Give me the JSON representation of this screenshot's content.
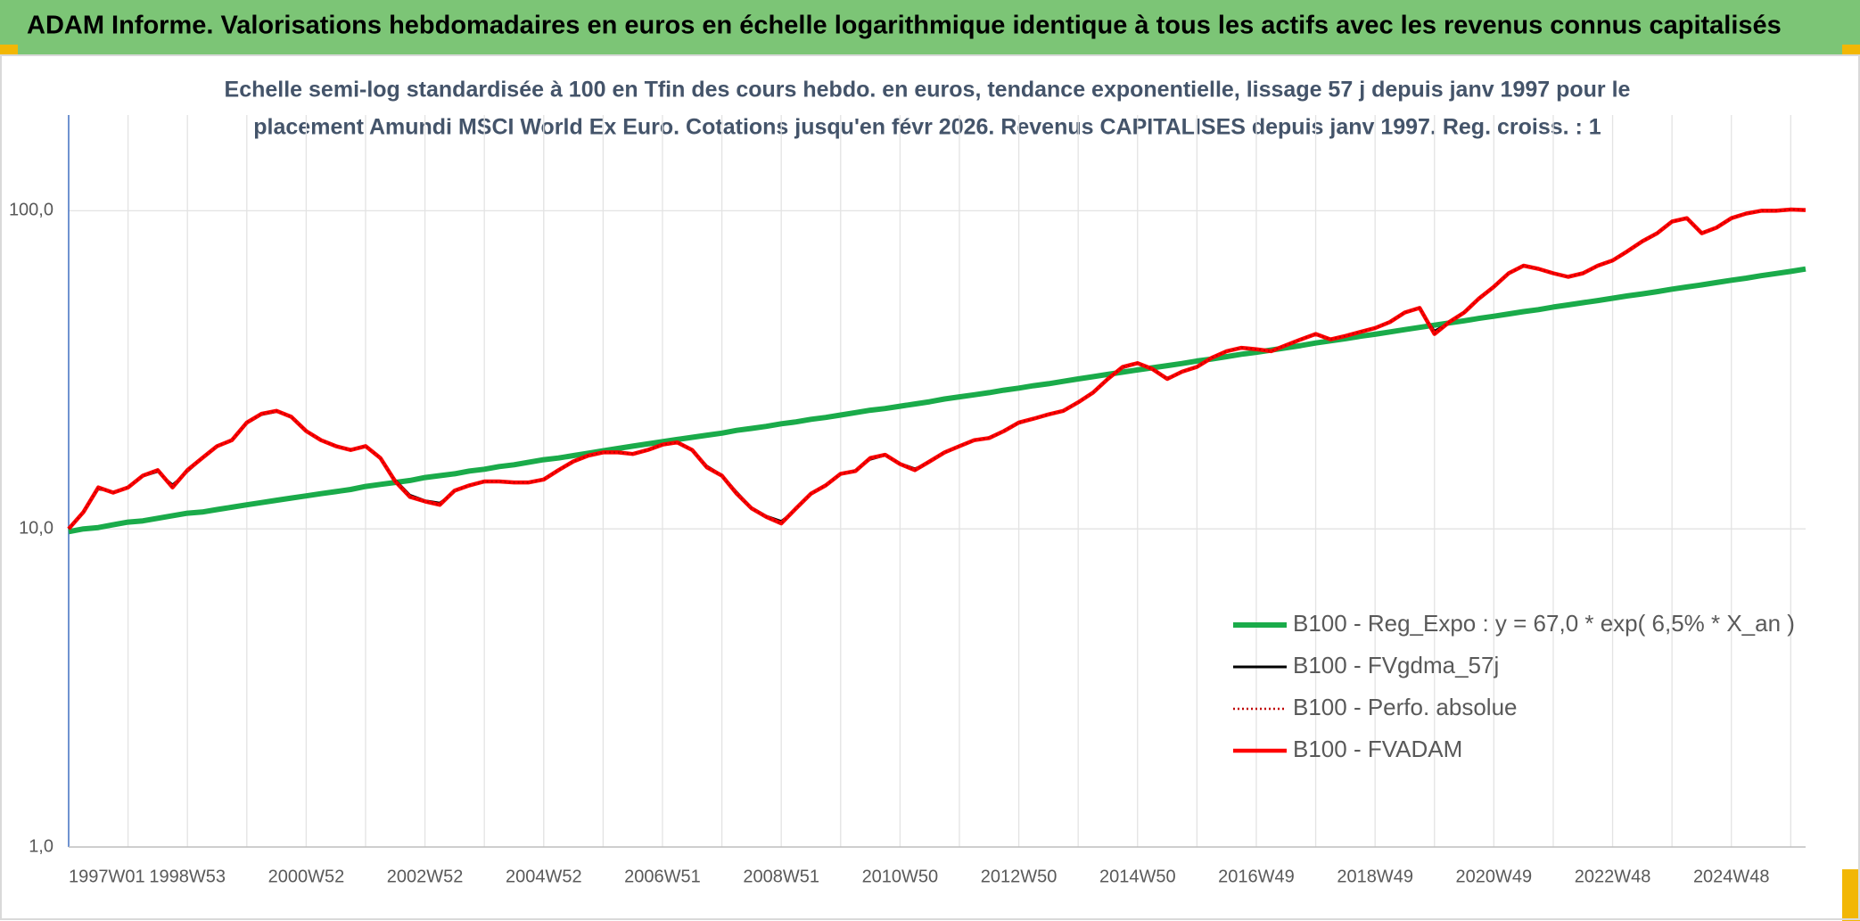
{
  "header": {
    "title": "ADAM Informe. Valorisations hebdomadaires en euros en échelle logarithmique identique à tous les actifs avec les revenus connus capitalisés"
  },
  "chart_data": {
    "type": "line",
    "subtitle": [
      "Echelle semi-log standardisée à 100 en Tfin des cours hebdo. en euros, tendance exponentielle, lissage 57 j depuis janv 1997 pour le",
      "placement Amundi MSCI World Ex Euro. Cotations jusqu'en févr 2026. Revenus CAPITALISES depuis janv 1997. Reg. croiss. : 1"
    ],
    "log_y": true,
    "grid": true,
    "legend": "right",
    "ylim": [
      1,
      200
    ],
    "yticks": [
      {
        "value": 1,
        "label": "1,0"
      },
      {
        "value": 10,
        "label": "10,0"
      },
      {
        "value": 100,
        "label": "100,0"
      }
    ],
    "categories": [
      "1997W01",
      null,
      null,
      null,
      null,
      null,
      null,
      null,
      "1998W53",
      null,
      null,
      null,
      null,
      null,
      null,
      null,
      "2000W52",
      null,
      null,
      null,
      null,
      null,
      null,
      null,
      "2002W52",
      null,
      null,
      null,
      null,
      null,
      null,
      null,
      "2004W52",
      null,
      null,
      null,
      null,
      null,
      null,
      null,
      "2006W51",
      null,
      null,
      null,
      null,
      null,
      null,
      null,
      "2008W51",
      null,
      null,
      null,
      null,
      null,
      null,
      null,
      "2010W50",
      null,
      null,
      null,
      null,
      null,
      null,
      null,
      "2012W50",
      null,
      null,
      null,
      null,
      null,
      null,
      null,
      "2014W50",
      null,
      null,
      null,
      null,
      null,
      null,
      null,
      "2016W49",
      null,
      null,
      null,
      null,
      null,
      null,
      null,
      "2018W49",
      null,
      null,
      null,
      null,
      null,
      null,
      null,
      "2020W49",
      null,
      null,
      null,
      null,
      null,
      null,
      null,
      "2022W48",
      null,
      null,
      null,
      null,
      null,
      null,
      null,
      "2024W48",
      null,
      null,
      null,
      null,
      null
    ],
    "series": [
      {
        "name": "B100 - Reg_Expo : y = 67,0 * exp( 6,5% *  X_an )",
        "color": "#1aab4a",
        "width": 6,
        "values": [
          9.8,
          10.0,
          10.1,
          10.3,
          10.5,
          10.6,
          10.8,
          11.0,
          11.2,
          11.3,
          11.5,
          11.7,
          11.9,
          12.1,
          12.3,
          12.5,
          12.7,
          12.9,
          13.1,
          13.3,
          13.6,
          13.8,
          14.0,
          14.2,
          14.5,
          14.7,
          14.9,
          15.2,
          15.4,
          15.7,
          15.9,
          16.2,
          16.5,
          16.7,
          17.0,
          17.3,
          17.6,
          17.9,
          18.2,
          18.5,
          18.8,
          19.1,
          19.4,
          19.7,
          20.0,
          20.4,
          20.7,
          21.0,
          21.4,
          21.7,
          22.1,
          22.4,
          22.8,
          23.2,
          23.6,
          23.9,
          24.3,
          24.7,
          25.1,
          25.6,
          26.0,
          26.4,
          26.8,
          27.3,
          27.7,
          28.2,
          28.6,
          29.1,
          29.6,
          30.1,
          30.6,
          31.1,
          31.6,
          32.1,
          32.6,
          33.1,
          33.7,
          34.2,
          34.8,
          35.4,
          35.9,
          36.5,
          37.1,
          37.7,
          38.4,
          39.0,
          39.6,
          40.3,
          40.9,
          41.6,
          42.3,
          43.0,
          43.7,
          44.4,
          45.1,
          45.9,
          46.6,
          47.4,
          48.2,
          48.9,
          49.8,
          50.6,
          51.4,
          52.2,
          53.1,
          54.0,
          54.8,
          55.7,
          56.7,
          57.6,
          58.5,
          59.5,
          60.5,
          61.4,
          62.5,
          63.5,
          64.5,
          65.6
        ]
      },
      {
        "name": "B100 - FVgdma_57j",
        "color": "#000000",
        "width": 2,
        "values": [
          10.0,
          11.2,
          13.3,
          13.1,
          13.5,
          14.6,
          15.1,
          13.8,
          15.1,
          16.6,
          18.1,
          19.0,
          21.4,
          22.8,
          23.3,
          22.5,
          20.4,
          19.1,
          18.3,
          17.8,
          18.1,
          16.8,
          14.3,
          12.8,
          12.3,
          12.1,
          13.1,
          13.7,
          14.0,
          14.1,
          14.0,
          14.0,
          14.3,
          15.2,
          16.2,
          16.9,
          17.3,
          17.4,
          17.2,
          17.7,
          18.3,
          18.6,
          17.8,
          15.8,
          14.8,
          13.1,
          11.7,
          11.0,
          10.6,
          11.5,
          12.8,
          13.7,
          14.8,
          15.2,
          16.5,
          17.0,
          16.1,
          15.5,
          16.2,
          17.3,
          18.1,
          18.9,
          19.3,
          20.2,
          21.4,
          22.1,
          22.8,
          23.5,
          24.9,
          26.7,
          29.4,
          32.0,
          33.0,
          31.9,
          29.9,
          31.1,
          32.3,
          34.4,
          36.0,
          37.0,
          36.7,
          36.3,
          37.7,
          39.3,
          40.8,
          39.6,
          40.3,
          41.5,
          42.7,
          44.6,
          47.6,
          49.2,
          42.0,
          44.5,
          47.7,
          52.8,
          57.5,
          63.3,
          66.9,
          65.8,
          63.7,
          62.1,
          63.5,
          67.0,
          69.7,
          74.4,
          80.0,
          84.8,
          92.2,
          94.5,
          85.6,
          88.4,
          94.6,
          97.8,
          99.8,
          100.0,
          100.8,
          100.5
        ]
      },
      {
        "name": "B100 - Perfo. absolue",
        "color": "#c00000",
        "width": 2,
        "dotted": true,
        "values": [
          10.0,
          11.3,
          13.5,
          13.0,
          13.5,
          14.7,
          15.3,
          13.5,
          15.3,
          16.7,
          18.2,
          19.0,
          21.6,
          23.0,
          23.5,
          22.5,
          20.3,
          19.0,
          18.2,
          17.7,
          18.2,
          16.7,
          14.1,
          12.6,
          12.2,
          11.9,
          13.2,
          13.7,
          14.1,
          14.1,
          14.0,
          14.0,
          14.3,
          15.3,
          16.3,
          17.0,
          17.4,
          17.4,
          17.2,
          17.7,
          18.4,
          18.7,
          17.7,
          15.6,
          14.7,
          12.9,
          11.6,
          10.9,
          10.4,
          11.6,
          12.9,
          13.7,
          14.9,
          15.2,
          16.7,
          17.1,
          16.0,
          15.3,
          16.3,
          17.4,
          18.2,
          19.0,
          19.3,
          20.3,
          21.6,
          22.2,
          22.9,
          23.5,
          25.0,
          26.8,
          29.6,
          32.3,
          33.2,
          31.8,
          29.6,
          31.2,
          32.3,
          34.5,
          36.2,
          37.1,
          36.7,
          36.2,
          37.8,
          39.4,
          41.0,
          39.4,
          40.4,
          41.6,
          42.8,
          44.7,
          47.9,
          49.5,
          41.0,
          44.7,
          47.9,
          53.0,
          57.7,
          63.6,
          67.2,
          65.7,
          63.6,
          62.0,
          63.6,
          67.2,
          69.8,
          74.6,
          80.2,
          85.0,
          92.5,
          94.8,
          85.0,
          88.5,
          94.8,
          98.0,
          100.0,
          100.0,
          100.9,
          100.5
        ]
      },
      {
        "name": "B100 - FVADAM",
        "color": "#ff0000",
        "width": 4.5,
        "values": [
          10.0,
          11.3,
          13.5,
          13.0,
          13.5,
          14.7,
          15.3,
          13.5,
          15.3,
          16.7,
          18.2,
          19.0,
          21.6,
          23.0,
          23.5,
          22.5,
          20.3,
          19.0,
          18.2,
          17.7,
          18.2,
          16.7,
          14.1,
          12.6,
          12.2,
          11.9,
          13.2,
          13.7,
          14.1,
          14.1,
          14.0,
          14.0,
          14.3,
          15.3,
          16.3,
          17.0,
          17.4,
          17.4,
          17.2,
          17.7,
          18.4,
          18.7,
          17.7,
          15.6,
          14.7,
          12.9,
          11.6,
          10.9,
          10.4,
          11.6,
          12.9,
          13.7,
          14.9,
          15.2,
          16.7,
          17.1,
          16.0,
          15.3,
          16.3,
          17.4,
          18.2,
          19.0,
          19.3,
          20.3,
          21.6,
          22.2,
          22.9,
          23.5,
          25.0,
          26.8,
          29.6,
          32.3,
          33.2,
          31.8,
          29.6,
          31.2,
          32.3,
          34.5,
          36.2,
          37.1,
          36.7,
          36.2,
          37.8,
          39.4,
          41.0,
          39.4,
          40.4,
          41.6,
          42.8,
          44.7,
          47.9,
          49.5,
          41.0,
          44.7,
          47.9,
          53.0,
          57.7,
          63.6,
          67.2,
          65.7,
          63.6,
          62.0,
          63.6,
          67.2,
          69.8,
          74.6,
          80.2,
          85.0,
          92.5,
          94.8,
          85.0,
          88.5,
          94.8,
          98.0,
          100.0,
          100.0,
          100.9,
          100.5
        ]
      }
    ]
  }
}
